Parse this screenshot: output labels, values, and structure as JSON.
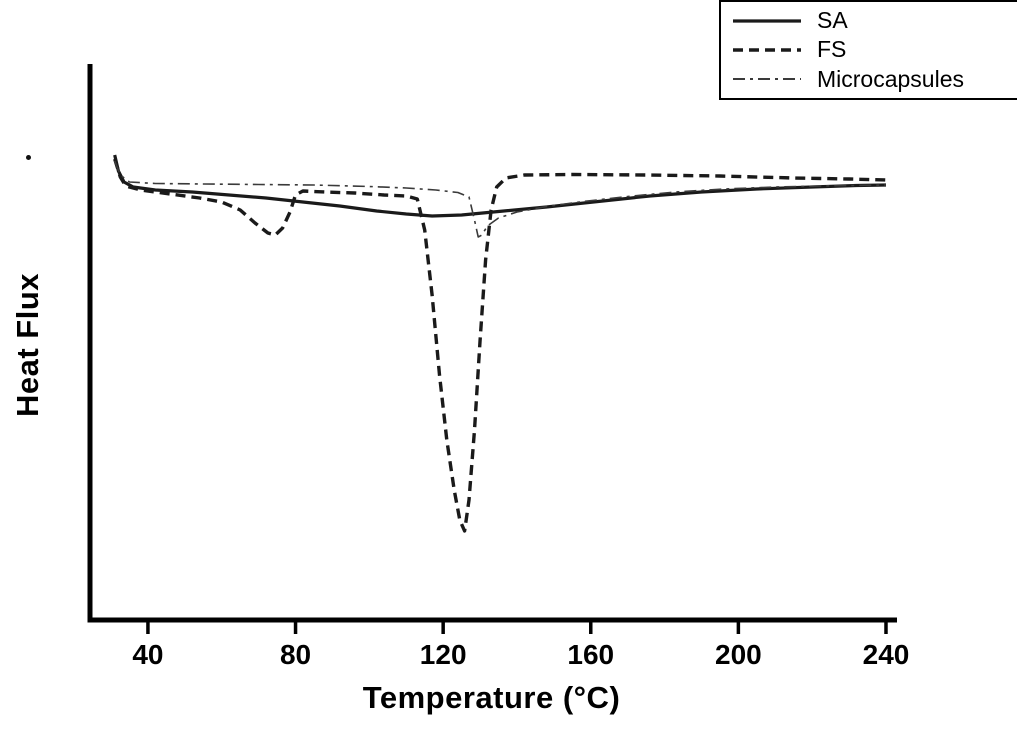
{
  "figure": {
    "background": "#ffffff",
    "axis_color": "#000000",
    "text_color": "#000000"
  },
  "chart_data": {
    "type": "line",
    "title": "",
    "xlabel": "Temperature (°C)",
    "ylabel": "Heat Flux",
    "x_ticks": [
      40,
      80,
      120,
      160,
      200,
      240
    ],
    "y_ticks": [],
    "xlim": [
      24.3,
      241.9
    ],
    "ylim": [
      -4.35,
      1.17
    ],
    "grid": false,
    "legend_position": "top-right-outside",
    "series": [
      {
        "name": "SA",
        "style": "solid",
        "color": "#1a1a1a",
        "width": 3.2,
        "dash": [],
        "points": [
          [
            31,
            0.3
          ],
          [
            32,
            0.14
          ],
          [
            33.5,
            0.03
          ],
          [
            36,
            -0.02
          ],
          [
            42,
            -0.05
          ],
          [
            52,
            -0.07
          ],
          [
            62,
            -0.1
          ],
          [
            72,
            -0.13
          ],
          [
            82,
            -0.17
          ],
          [
            92,
            -0.21
          ],
          [
            102,
            -0.26
          ],
          [
            110,
            -0.29
          ],
          [
            117,
            -0.31
          ],
          [
            125,
            -0.3
          ],
          [
            135,
            -0.265
          ],
          [
            148,
            -0.22
          ],
          [
            162,
            -0.165
          ],
          [
            176,
            -0.11
          ],
          [
            190,
            -0.07
          ],
          [
            205,
            -0.04
          ],
          [
            220,
            -0.02
          ],
          [
            232,
            -0.005
          ],
          [
            240,
            0.0
          ]
        ]
      },
      {
        "name": "FS",
        "style": "dashed",
        "color": "#1a1a1a",
        "width": 3.4,
        "dash": [
          10,
          6
        ],
        "points": [
          [
            31,
            0.26
          ],
          [
            32.5,
            0.08
          ],
          [
            34,
            -0.01
          ],
          [
            38,
            -0.05
          ],
          [
            46,
            -0.09
          ],
          [
            54,
            -0.13
          ],
          [
            60,
            -0.17
          ],
          [
            65,
            -0.25
          ],
          [
            69,
            -0.38
          ],
          [
            72.5,
            -0.48
          ],
          [
            74.5,
            -0.5
          ],
          [
            76.5,
            -0.43
          ],
          [
            78.5,
            -0.27
          ],
          [
            80,
            -0.1
          ],
          [
            82,
            -0.06
          ],
          [
            88,
            -0.07
          ],
          [
            96,
            -0.08
          ],
          [
            104,
            -0.1
          ],
          [
            110,
            -0.11
          ],
          [
            113,
            -0.14
          ],
          [
            115,
            -0.45
          ],
          [
            117,
            -1.1
          ],
          [
            119,
            -1.9
          ],
          [
            121,
            -2.55
          ],
          [
            123,
            -3.05
          ],
          [
            124.5,
            -3.35
          ],
          [
            125.8,
            -3.46
          ],
          [
            127,
            -3.15
          ],
          [
            128.5,
            -2.45
          ],
          [
            130,
            -1.55
          ],
          [
            131.5,
            -0.75
          ],
          [
            133,
            -0.25
          ],
          [
            134.5,
            -0.02
          ],
          [
            137,
            0.07
          ],
          [
            142,
            0.1
          ],
          [
            155,
            0.105
          ],
          [
            175,
            0.1
          ],
          [
            195,
            0.09
          ],
          [
            215,
            0.07
          ],
          [
            230,
            0.06
          ],
          [
            240,
            0.05
          ]
        ]
      },
      {
        "name": "Microcapsules",
        "style": "dashdot",
        "color": "#3a3a3a",
        "width": 1.6,
        "dash": [
          12,
          5,
          3,
          5
        ],
        "points": [
          [
            31,
            0.24
          ],
          [
            32.5,
            0.1
          ],
          [
            35,
            0.03
          ],
          [
            42,
            0.015
          ],
          [
            55,
            0.01
          ],
          [
            70,
            0.005
          ],
          [
            85,
            0.0
          ],
          [
            100,
            -0.015
          ],
          [
            110,
            -0.03
          ],
          [
            118,
            -0.05
          ],
          [
            124,
            -0.075
          ],
          [
            127,
            -0.12
          ],
          [
            128.5,
            -0.35
          ],
          [
            129.5,
            -0.52
          ],
          [
            130.5,
            -0.5
          ],
          [
            132,
            -0.41
          ],
          [
            135,
            -0.33
          ],
          [
            140,
            -0.27
          ],
          [
            148,
            -0.215
          ],
          [
            158,
            -0.165
          ],
          [
            170,
            -0.115
          ],
          [
            183,
            -0.07
          ],
          [
            196,
            -0.04
          ],
          [
            210,
            -0.02
          ],
          [
            225,
            -0.008
          ],
          [
            240,
            0.0
          ]
        ]
      }
    ]
  },
  "legend": {
    "items": [
      {
        "label": "SA"
      },
      {
        "label": "FS"
      },
      {
        "label": "Microcapsules"
      }
    ]
  }
}
